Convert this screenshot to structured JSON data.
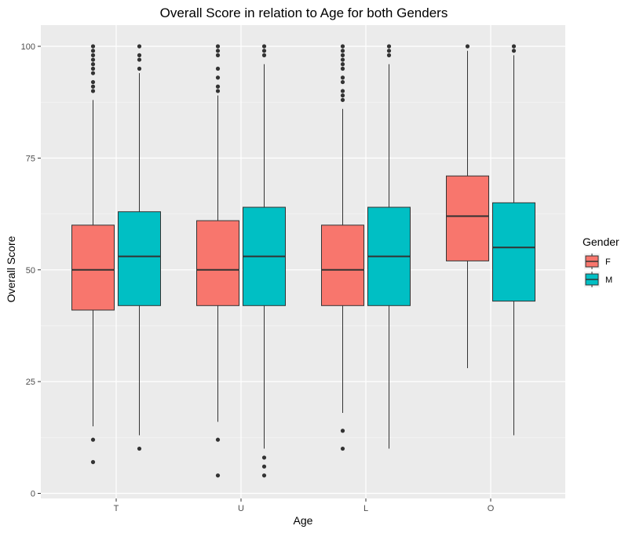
{
  "chart_data": {
    "type": "boxplot",
    "title": "Overall Score in relation to Age for both Genders",
    "xlabel": "Age",
    "ylabel": "Overall Score",
    "categories": [
      "T",
      "U",
      "L",
      "O"
    ],
    "ylim": [
      0,
      100
    ],
    "yticks": [
      0,
      25,
      50,
      75,
      100
    ],
    "grid": true,
    "legend": {
      "title": "Gender",
      "position": "right"
    },
    "series": [
      {
        "name": "F",
        "color": "#F8766D",
        "boxes": [
          {
            "category": "T",
            "whisker_low": 15,
            "q1": 41,
            "median": 50,
            "q3": 60,
            "whisker_high": 88,
            "outliers": [
              7,
              12,
              90,
              91,
              92,
              94,
              95,
              96,
              97,
              98,
              99,
              100
            ]
          },
          {
            "category": "U",
            "whisker_low": 16,
            "q1": 42,
            "median": 50,
            "q3": 61,
            "whisker_high": 89,
            "outliers": [
              4,
              12,
              90,
              91,
              93,
              95,
              98,
              99,
              100
            ]
          },
          {
            "category": "L",
            "whisker_low": 18,
            "q1": 42,
            "median": 50,
            "q3": 60,
            "whisker_high": 86,
            "outliers": [
              10,
              14,
              88,
              89,
              90,
              92,
              93,
              95,
              96,
              97,
              98,
              99,
              100
            ]
          },
          {
            "category": "O",
            "whisker_low": 28,
            "q1": 52,
            "median": 62,
            "q3": 71,
            "whisker_high": 99,
            "outliers": [
              100
            ]
          }
        ]
      },
      {
        "name": "M",
        "color": "#00BFC4",
        "boxes": [
          {
            "category": "T",
            "whisker_low": 13,
            "q1": 42,
            "median": 53,
            "q3": 63,
            "whisker_high": 94,
            "outliers": [
              10,
              95,
              97,
              98,
              100
            ]
          },
          {
            "category": "U",
            "whisker_low": 10,
            "q1": 42,
            "median": 53,
            "q3": 64,
            "whisker_high": 96,
            "outliers": [
              4,
              6,
              8,
              98,
              99,
              100
            ]
          },
          {
            "category": "L",
            "whisker_low": 10,
            "q1": 42,
            "median": 53,
            "q3": 64,
            "whisker_high": 96,
            "outliers": [
              98,
              99,
              100
            ]
          },
          {
            "category": "O",
            "whisker_low": 13,
            "q1": 43,
            "median": 55,
            "q3": 65,
            "whisker_high": 98,
            "outliers": [
              99,
              100
            ]
          }
        ]
      }
    ]
  }
}
